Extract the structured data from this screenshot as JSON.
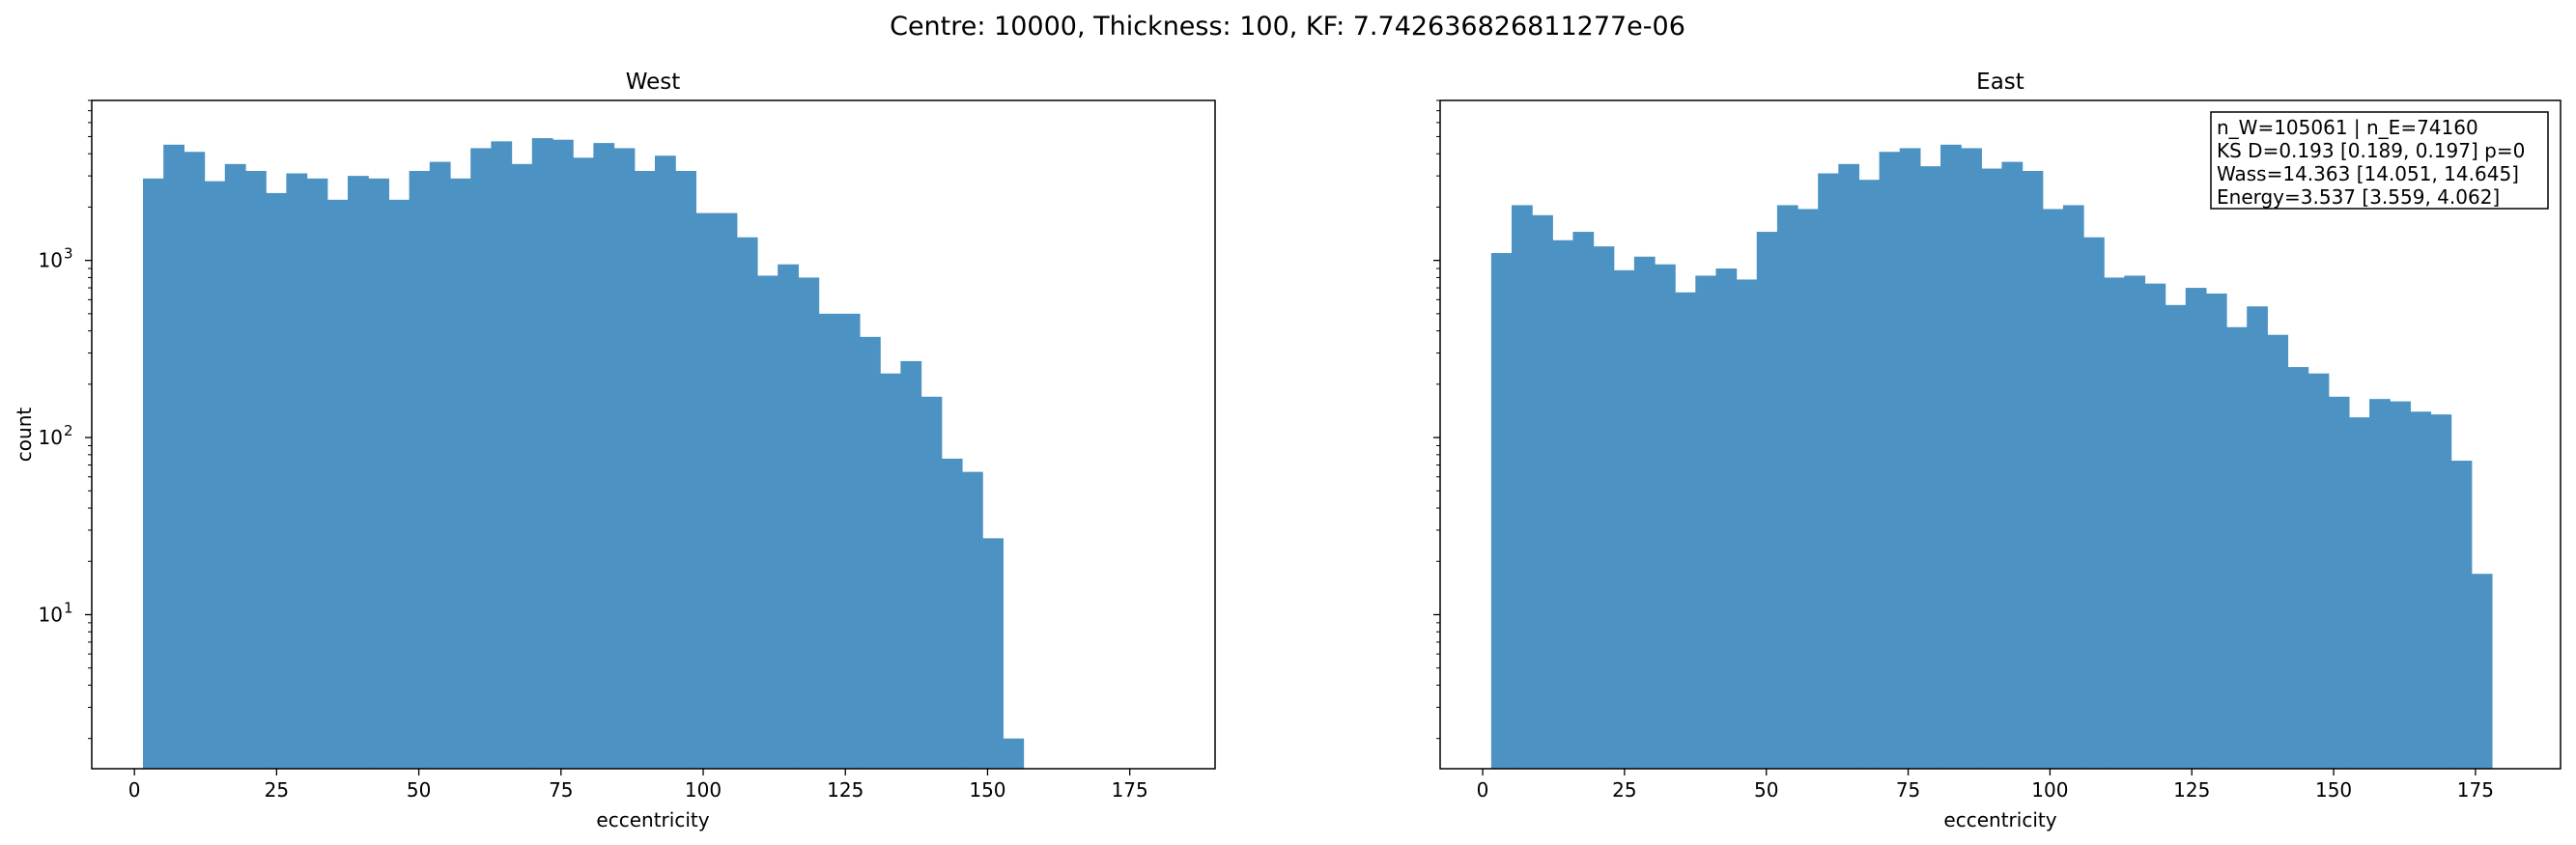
{
  "suptitle": "Centre: 10000, Thickness: 100, KF: 7.742636826811277e-06",
  "colors": {
    "bar": "#4c92c3",
    "axes": "#000000",
    "background": "#ffffff"
  },
  "chart_data": [
    {
      "type": "bar",
      "title": "West",
      "xlabel": "eccentricity",
      "ylabel": "count",
      "xlim": [
        -7.5,
        190
      ],
      "ylim": [
        1.35,
        8000
      ],
      "yscale": "log",
      "xticks": [
        0,
        25,
        50,
        75,
        100,
        125,
        150,
        175
      ],
      "yticks": [
        {
          "value": 10,
          "mantissa": "10",
          "exp": "1"
        },
        {
          "value": 100,
          "mantissa": "10",
          "exp": "2"
        },
        {
          "value": 1000,
          "mantissa": "10",
          "exp": "3"
        }
      ],
      "bin_start": 1.5,
      "bin_width": 3.6,
      "values": [
        2900,
        4500,
        4100,
        2800,
        3500,
        3200,
        2400,
        3100,
        2900,
        2200,
        3000,
        2900,
        2200,
        3200,
        3600,
        2900,
        4300,
        4700,
        3500,
        4900,
        4800,
        3800,
        4600,
        4300,
        3200,
        3900,
        3200,
        1850,
        1850,
        1350,
        820,
        950,
        800,
        500,
        500,
        370,
        230,
        270,
        170,
        76,
        64,
        27,
        2
      ],
      "grid": false
    },
    {
      "type": "bar",
      "title": "East",
      "xlabel": "eccentricity",
      "ylabel": "",
      "xlim": [
        -7.5,
        190
      ],
      "ylim": [
        1.35,
        8000
      ],
      "yscale": "log",
      "xticks": [
        0,
        25,
        50,
        75,
        100,
        125,
        150,
        175
      ],
      "bin_start": 1.5,
      "bin_width": 3.6,
      "values": [
        1100,
        2050,
        1800,
        1300,
        1450,
        1200,
        880,
        1050,
        950,
        660,
        820,
        900,
        780,
        1450,
        2050,
        1950,
        3100,
        3500,
        2850,
        4100,
        4300,
        3400,
        4500,
        4300,
        3300,
        3600,
        3200,
        1950,
        2050,
        1350,
        800,
        820,
        740,
        560,
        700,
        650,
        420,
        550,
        380,
        250,
        230,
        170,
        130,
        165,
        160,
        140,
        135,
        74,
        17
      ],
      "annotation": [
        "n_W=105061 | n_E=74160",
        "KS D=0.193 [0.189, 0.197]  p=0",
        "Wass=14.363 [14.051, 14.645]",
        "Energy=3.537 [3.559, 4.062]"
      ],
      "grid": false
    }
  ]
}
